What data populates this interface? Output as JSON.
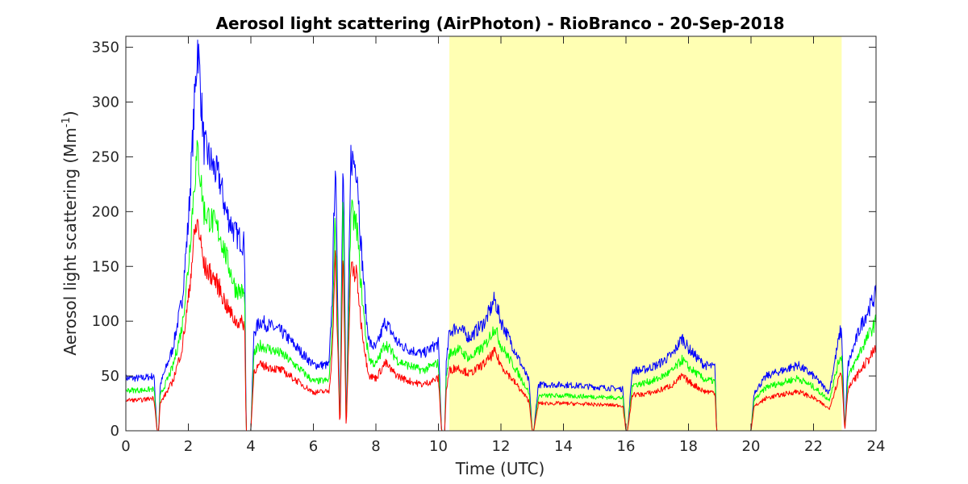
{
  "chart_data": {
    "type": "line",
    "title": "Aerosol light scattering (AirPhoton) - RioBranco - 20-Sep-2018",
    "xlabel": "Time (UTC)",
    "ylabel_main": "Aerosol light scattering (Mm",
    "ylabel_sup": "-1",
    "ylabel_close": ")",
    "xlim": [
      0,
      24
    ],
    "ylim": [
      0,
      360
    ],
    "xticks": [
      0,
      2,
      4,
      6,
      8,
      10,
      12,
      14,
      16,
      18,
      20,
      22,
      24
    ],
    "yticks": [
      0,
      50,
      100,
      150,
      200,
      250,
      300,
      350
    ],
    "grid": false,
    "shaded_region": {
      "x_start": 10.35,
      "x_end": 22.9,
      "color": "#ffffb3"
    },
    "x": [
      0,
      0.5,
      0.9,
      1.0,
      1.05,
      1.1,
      1.5,
      1.8,
      2.0,
      2.2,
      2.3,
      2.5,
      2.8,
      3.0,
      3.2,
      3.5,
      3.8,
      3.85,
      3.9,
      4.0,
      4.1,
      4.3,
      5.0,
      5.5,
      6.0,
      6.5,
      6.6,
      6.7,
      6.85,
      6.95,
      7.05,
      7.2,
      7.4,
      7.5,
      7.7,
      7.8,
      8.0,
      8.3,
      8.5,
      8.7,
      9.0,
      9.5,
      10.0,
      10.1,
      10.2,
      10.25,
      10.35,
      10.6,
      11.0,
      11.5,
      11.8,
      12.0,
      12.5,
      12.9,
      13.0,
      13.05,
      13.2,
      14.0,
      15.0,
      15.9,
      16.0,
      16.05,
      16.2,
      16.5,
      17.0,
      17.5,
      17.8,
      18.0,
      18.5,
      18.85,
      18.9,
      20.0,
      20.1,
      20.5,
      21.0,
      21.5,
      22.0,
      22.5,
      22.85,
      22.9,
      23.0,
      23.1,
      23.5,
      24.0
    ],
    "series": [
      {
        "color": "#0000ff",
        "values": [
          48,
          48,
          50,
          0,
          0,
          42,
          75,
          120,
          190,
          300,
          355,
          260,
          240,
          230,
          200,
          180,
          170,
          0,
          0,
          0,
          90,
          100,
          90,
          75,
          60,
          60,
          120,
          250,
          0,
          270,
          0,
          250,
          240,
          180,
          100,
          80,
          75,
          100,
          90,
          80,
          75,
          70,
          80,
          0,
          0,
          60,
          90,
          95,
          85,
          100,
          120,
          100,
          70,
          45,
          0,
          0,
          42,
          42,
          40,
          38,
          0,
          0,
          55,
          55,
          60,
          70,
          85,
          75,
          60,
          58,
          0,
          0,
          35,
          50,
          55,
          60,
          50,
          35,
          90,
          90,
          0,
          60,
          95,
          125
        ]
      },
      {
        "color": "#00ff00",
        "values": [
          37,
          37,
          38,
          0,
          0,
          32,
          58,
          95,
          150,
          230,
          255,
          200,
          190,
          180,
          160,
          130,
          125,
          0,
          0,
          0,
          70,
          78,
          70,
          58,
          45,
          46,
          90,
          200,
          0,
          210,
          0,
          200,
          185,
          140,
          80,
          65,
          60,
          80,
          72,
          64,
          60,
          55,
          62,
          0,
          0,
          48,
          70,
          75,
          66,
          78,
          95,
          78,
          55,
          35,
          0,
          0,
          32,
          32,
          31,
          30,
          0,
          0,
          42,
          43,
          47,
          55,
          65,
          58,
          47,
          45,
          0,
          0,
          28,
          40,
          44,
          48,
          40,
          28,
          68,
          68,
          0,
          48,
          73,
          100
        ]
      },
      {
        "color": "#ff0000",
        "values": [
          28,
          28,
          30,
          0,
          0,
          25,
          45,
          75,
          120,
          180,
          190,
          150,
          140,
          130,
          115,
          100,
          98,
          0,
          0,
          0,
          55,
          60,
          55,
          45,
          35,
          36,
          70,
          160,
          0,
          165,
          0,
          150,
          140,
          105,
          62,
          50,
          48,
          62,
          55,
          50,
          46,
          42,
          48,
          0,
          0,
          36,
          55,
          58,
          52,
          62,
          72,
          60,
          42,
          27,
          0,
          0,
          25,
          25,
          24,
          23,
          0,
          0,
          33,
          33,
          36,
          42,
          50,
          45,
          36,
          35,
          0,
          0,
          22,
          30,
          33,
          36,
          30,
          20,
          52,
          52,
          0,
          38,
          55,
          75
        ]
      }
    ]
  }
}
